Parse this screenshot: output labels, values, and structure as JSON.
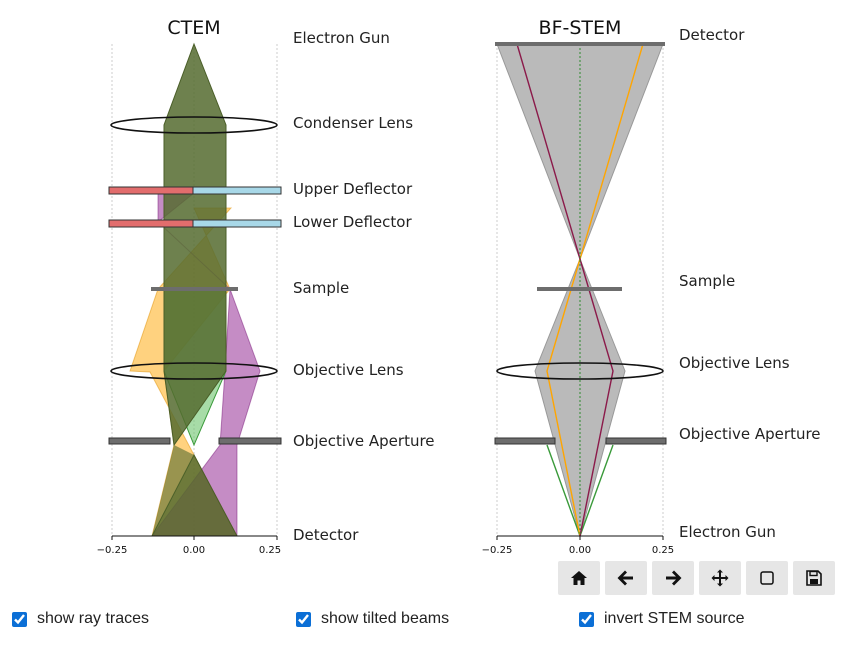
{
  "ctem": {
    "title": "CTEM",
    "labels": {
      "gun": "Electron Gun",
      "condenser": "Condenser Lens",
      "upper_deflector": "Upper Deflector",
      "lower_deflector": "Lower Deflector",
      "sample": "Sample",
      "objective": "Objective Lens",
      "aperture": "Objective Aperture",
      "detector": "Detector"
    },
    "ticks": [
      "−0.25",
      "0.00",
      "0.25"
    ]
  },
  "stem": {
    "title": "BF-STEM",
    "labels": {
      "detector": "Detector",
      "sample": "Sample",
      "objective": "Objective Lens",
      "aperture": "Objective Aperture",
      "gun": "Electron Gun"
    },
    "ticks": [
      "−0.25",
      "0.00",
      "0.25"
    ]
  },
  "colors": {
    "olive": "#556b2f",
    "orange": "#ffa500",
    "purple": "#8b1a8b",
    "green": "#3a9a3a",
    "grey_beam": "#a9a9a9",
    "deflector_red": "#e26d6d",
    "deflector_blue": "#a8d8e8",
    "ray_maroon": "#8b1a4a"
  },
  "toolbar": {
    "buttons": [
      {
        "name": "home-button",
        "icon": "home-icon"
      },
      {
        "name": "back-button",
        "icon": "arrow-left-icon"
      },
      {
        "name": "forward-button",
        "icon": "arrow-right-icon"
      },
      {
        "name": "pan-button",
        "icon": "move-icon"
      },
      {
        "name": "zoom-button",
        "icon": "square-icon"
      },
      {
        "name": "save-button",
        "icon": "floppy-icon"
      }
    ]
  },
  "controls": {
    "ray_traces": {
      "label": "show ray traces",
      "checked": true
    },
    "tilted_beams": {
      "label": "show tilted beams",
      "checked": true
    },
    "invert_stem": {
      "label": "invert STEM source",
      "checked": true
    }
  }
}
